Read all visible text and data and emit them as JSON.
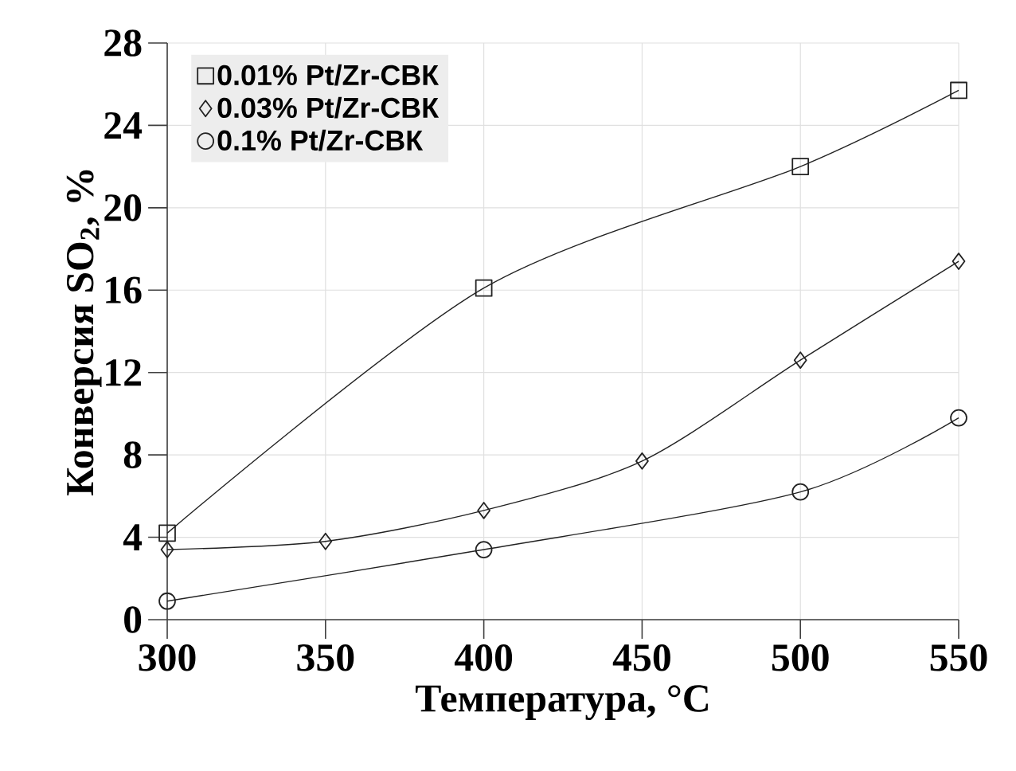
{
  "chart_data": {
    "type": "line",
    "xlabel": "Температура, °C",
    "ylabel": "Конверсия SO$_{2}$, %",
    "xlim": [
      300,
      550
    ],
    "xticks": [
      300,
      350,
      400,
      450,
      500,
      550
    ],
    "ylim": [
      0,
      28
    ],
    "yticks": [
      0,
      4,
      8,
      12,
      16,
      20,
      24,
      28
    ],
    "grid": true,
    "legend": "top left",
    "series": [
      {
        "name": "0.01% Pt/Zr-СВК",
        "color": "#222222",
        "marker": "square",
        "x": [
          300,
          400,
          500,
          550
        ],
        "values": [
          4.2,
          16.1,
          22.0,
          25.7
        ]
      },
      {
        "name": "0.03% Pt/Zr-СВК",
        "color": "#222222",
        "marker": "diamond",
        "x": [
          300,
          350,
          400,
          450,
          500,
          550
        ],
        "values": [
          3.4,
          3.8,
          5.3,
          7.7,
          12.6,
          17.4
        ]
      },
      {
        "name": "0.1% Pt/Zr-СВК",
        "color": "#222222",
        "marker": "circle",
        "x": [
          300,
          400,
          500,
          550
        ],
        "values": [
          0.9,
          3.4,
          6.2,
          9.8
        ]
      }
    ]
  }
}
